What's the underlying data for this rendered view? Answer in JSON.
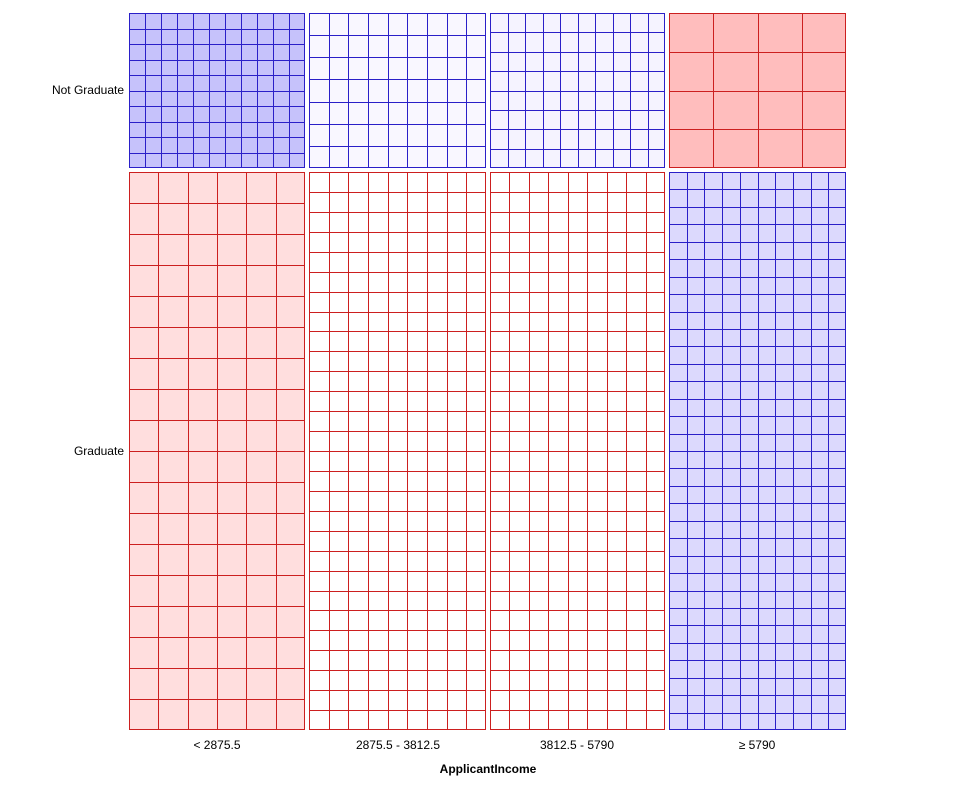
{
  "chart_data": {
    "type": "mosaic",
    "xlabel": "ApplicantIncome",
    "columns": [
      "< 2875.5",
      "2875.5 - 3812.5",
      "3812.5 - 5790",
      "≥ 5790"
    ],
    "rows": [
      "Not Graduate",
      "Graduate"
    ],
    "row_proportions": [
      0.217,
      0.783
    ],
    "cells": [
      [
        {
          "fill": "#c6c2fb",
          "stroke": "#2a1fc8",
          "grid_cols": 11,
          "grid_rows": 10
        },
        {
          "fill": "#f9f7ff",
          "stroke": "#2a1fc8",
          "grid_cols": 9,
          "grid_rows": 7
        },
        {
          "fill": "#f5f3ff",
          "stroke": "#2a1fc8",
          "grid_cols": 10,
          "grid_rows": 8
        },
        {
          "fill": "#ffbdbd",
          "stroke": "#cc1f1f",
          "grid_cols": 4,
          "grid_rows": 4
        }
      ],
      [
        {
          "fill": "#ffdede",
          "stroke": "#cc1f1f",
          "grid_cols": 6,
          "grid_rows": 18
        },
        {
          "fill": "#ffffff",
          "stroke": "#cc1f1f",
          "grid_cols": 9,
          "grid_rows": 28
        },
        {
          "fill": "#ffffff",
          "stroke": "#cc1f1f",
          "grid_cols": 9,
          "grid_rows": 28
        },
        {
          "fill": "#dcd9fd",
          "stroke": "#2a1fc8",
          "grid_cols": 10,
          "grid_rows": 32
        }
      ]
    ]
  }
}
